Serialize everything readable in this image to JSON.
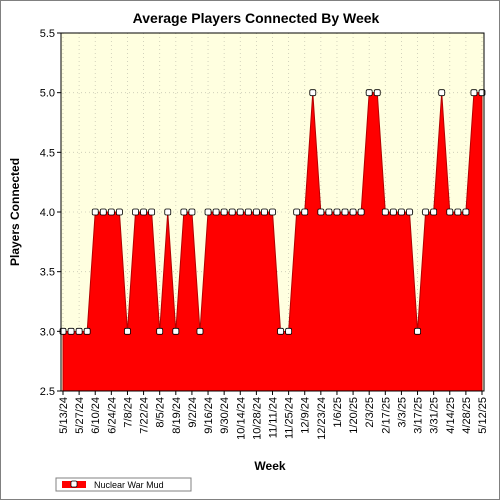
{
  "chart_data": {
    "type": "area",
    "title": "Average Players Connected By Week",
    "xlabel": "Week",
    "ylabel": "Players Connected",
    "ylim": [
      2.5,
      5.5
    ],
    "yticks": [
      2.5,
      3.0,
      3.5,
      4.0,
      4.5,
      5.0,
      5.5
    ],
    "grid": true,
    "legend_position": "bottom-left",
    "x_tick_labels": [
      "5/13/24",
      "5/27/24",
      "6/10/24",
      "6/24/24",
      "7/8/24",
      "7/22/24",
      "8/5/24",
      "8/19/24",
      "9/2/24",
      "9/16/24",
      "9/30/24",
      "10/14/24",
      "10/28/24",
      "11/11/24",
      "11/25/24",
      "12/9/24",
      "12/23/24",
      "1/6/25",
      "1/20/25",
      "2/3/25",
      "2/17/25",
      "3/3/25",
      "3/17/25",
      "3/31/25",
      "4/14/25",
      "4/28/25",
      "5/12/25"
    ],
    "colors": {
      "fill": "#ff0000",
      "edge": "#b40000",
      "marker_face": "#ffffff",
      "plot_bg": "#ffffe0"
    },
    "series": [
      {
        "name": "Nuclear War Mud",
        "x": [
          "5/13/24",
          "5/20/24",
          "5/27/24",
          "6/3/24",
          "6/10/24",
          "6/17/24",
          "6/24/24",
          "7/1/24",
          "7/8/24",
          "7/15/24",
          "7/22/24",
          "7/29/24",
          "8/5/24",
          "8/12/24",
          "8/19/24",
          "8/26/24",
          "9/2/24",
          "9/9/24",
          "9/16/24",
          "9/23/24",
          "9/30/24",
          "10/7/24",
          "10/14/24",
          "10/21/24",
          "10/28/24",
          "11/4/24",
          "11/11/24",
          "11/18/24",
          "11/25/24",
          "12/2/24",
          "12/9/24",
          "12/16/24",
          "12/23/24",
          "12/30/24",
          "1/6/25",
          "1/13/25",
          "1/20/25",
          "1/27/25",
          "2/3/25",
          "2/10/25",
          "2/17/25",
          "2/24/25",
          "3/3/25",
          "3/10/25",
          "3/17/25",
          "3/24/25",
          "3/31/25",
          "4/7/25",
          "4/14/25",
          "4/21/25",
          "4/28/25",
          "5/5/25",
          "5/12/25"
        ],
        "values": [
          3,
          3,
          3,
          3,
          4,
          4,
          4,
          4,
          3,
          4,
          4,
          4,
          3,
          4,
          3,
          4,
          4,
          3,
          4,
          4,
          4,
          4,
          4,
          4,
          4,
          4,
          4,
          3,
          3,
          4,
          4,
          5,
          4,
          4,
          4,
          4,
          4,
          4,
          5,
          5,
          4,
          4,
          4,
          4,
          3,
          4,
          4,
          5,
          4,
          4,
          4,
          5,
          5
        ]
      }
    ]
  }
}
